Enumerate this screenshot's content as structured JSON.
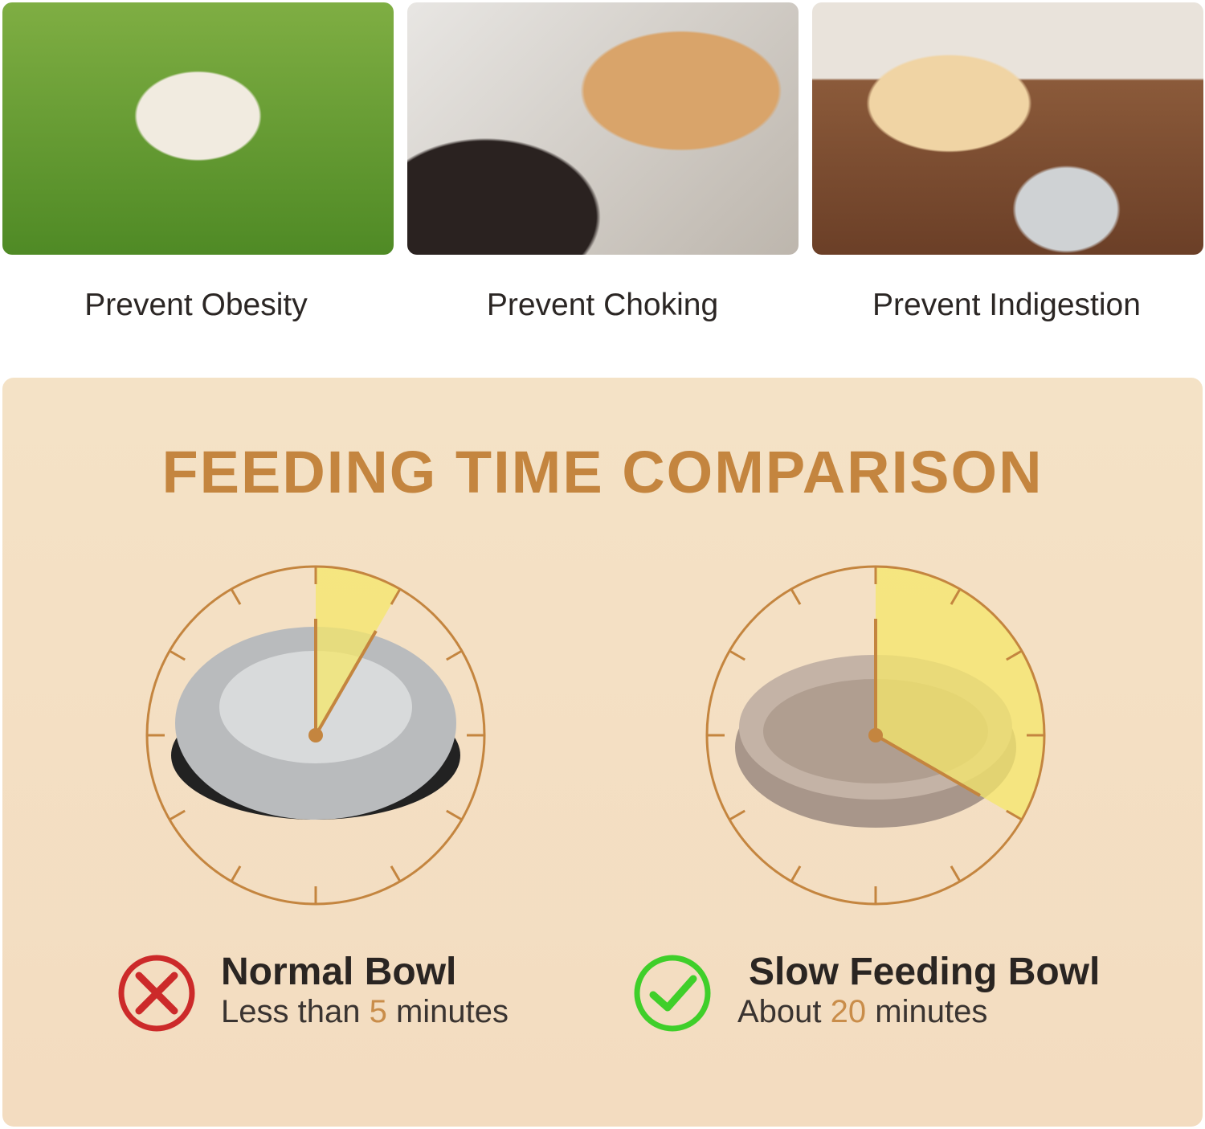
{
  "benefits": [
    {
      "label": "Prevent Obesity"
    },
    {
      "label": "Prevent Choking"
    },
    {
      "label": "Prevent Indigestion"
    }
  ],
  "comparison": {
    "title": "FEEDING TIME COMPARISON",
    "accent_color": "#c4853f",
    "wedge_color": "#f6e76a",
    "bowls": [
      {
        "name": "Normal Bowl",
        "prefix": "Less than",
        "number": "5",
        "unit": "minutes",
        "minutes": 5,
        "status_icon": "x-circle-icon",
        "status_color": "#cc2a2a"
      },
      {
        "name": "Slow Feeding Bowl",
        "prefix": "About",
        "number": "20",
        "unit": "minutes",
        "minutes": 20,
        "status_icon": "check-circle-icon",
        "status_color": "#3fcf2a"
      }
    ]
  }
}
